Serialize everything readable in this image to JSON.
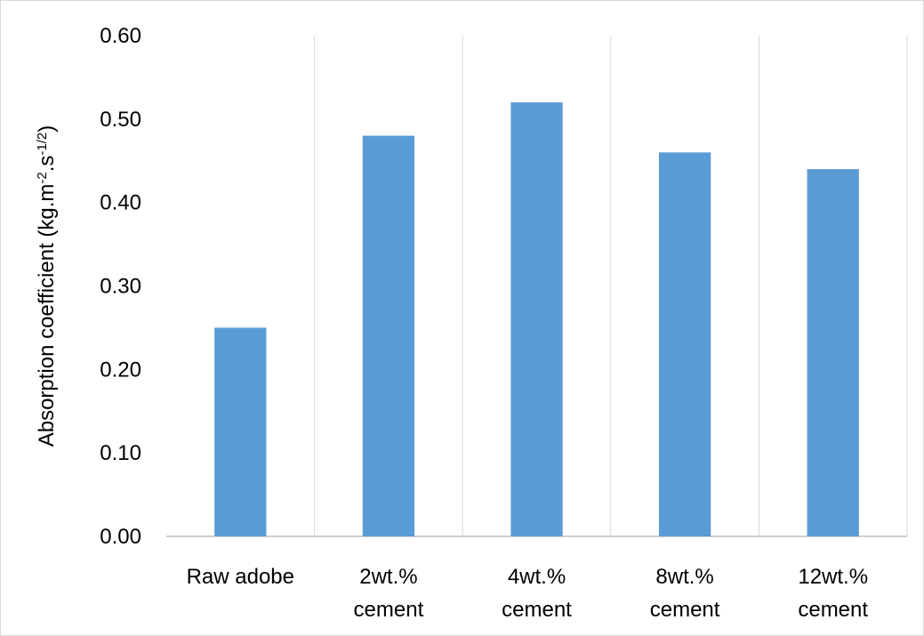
{
  "chart_data": {
    "type": "bar",
    "ylabel": [
      "Absorption coefficient (kg.m",
      "-2",
      ".s",
      "-1/2",
      ")"
    ],
    "categories": [
      [
        "Raw adobe"
      ],
      [
        "2wt.%",
        "cement"
      ],
      [
        "4wt.%",
        "cement"
      ],
      [
        "8wt.%",
        "cement"
      ],
      [
        "12wt.%",
        "cement"
      ]
    ],
    "values": [
      0.25,
      0.48,
      0.52,
      0.46,
      0.44
    ],
    "color": "#5b9bd5",
    "ylim": [
      0,
      0.6
    ],
    "yticks": [
      {
        "value": 0,
        "label": "0.00"
      },
      {
        "value": 0.1,
        "label": "0.10"
      },
      {
        "value": 0.2,
        "label": "0.20"
      },
      {
        "value": 0.3,
        "label": "0.30"
      },
      {
        "value": 0.4,
        "label": "0.40"
      },
      {
        "value": 0.5,
        "label": "0.50"
      },
      {
        "value": 0.6,
        "label": "0.60"
      }
    ]
  }
}
